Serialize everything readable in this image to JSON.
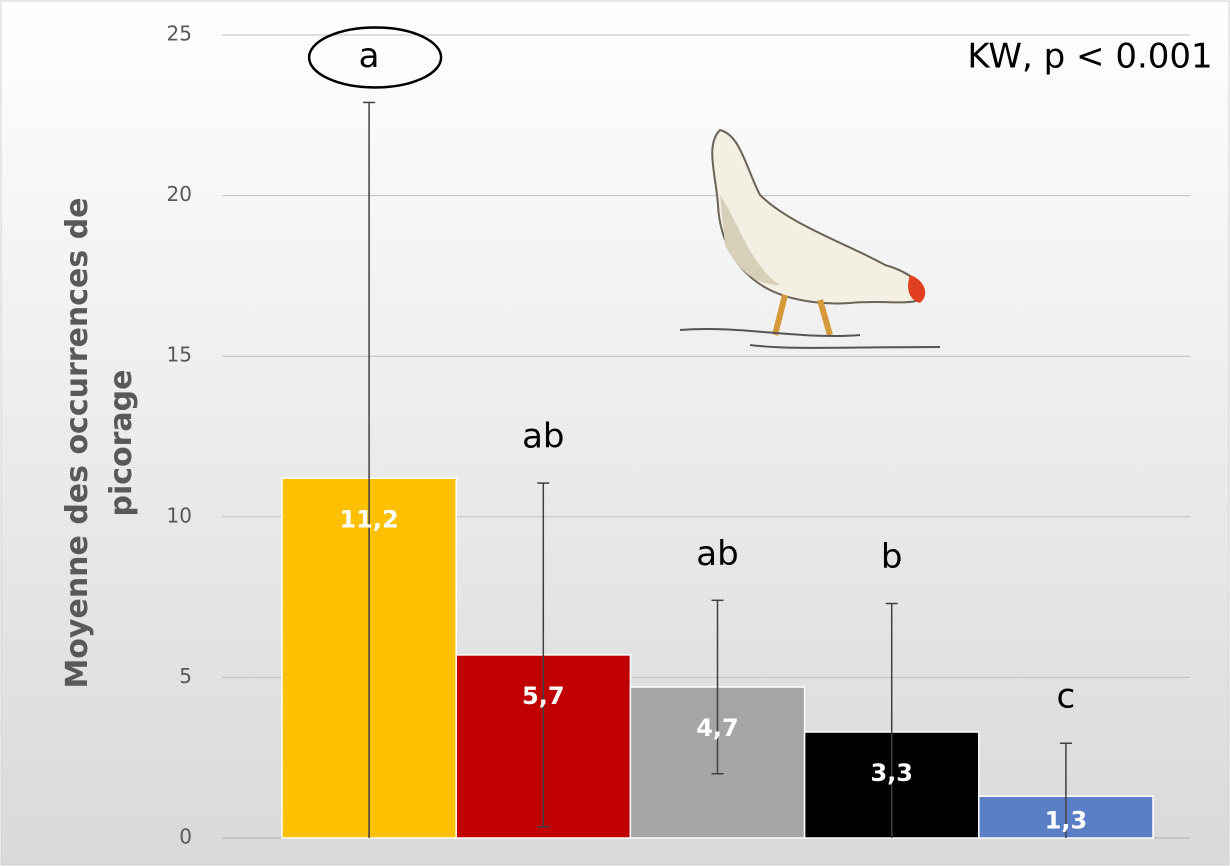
{
  "chart_data": {
    "type": "bar",
    "ylabel": "Moyenne des occurrences de picorage",
    "values": [
      11.2,
      5.7,
      4.7,
      3.3,
      1.3
    ],
    "value_labels": [
      "11,2",
      "5,7",
      "4,7",
      "3,3",
      "1,3"
    ],
    "errors": [
      11.7,
      5.35,
      2.7,
      4.0,
      1.65
    ],
    "colors": [
      "#ffc000",
      "#c00000",
      "#a5a5a5",
      "#000000",
      "#5b7fc7"
    ],
    "group_letters": [
      "a",
      "ab",
      "ab",
      "b",
      "c"
    ],
    "annotation": "KW, p < 0.001",
    "ylim": [
      0,
      25
    ],
    "yticks": [
      0,
      5,
      10,
      15,
      20,
      25
    ],
    "grid": true
  }
}
